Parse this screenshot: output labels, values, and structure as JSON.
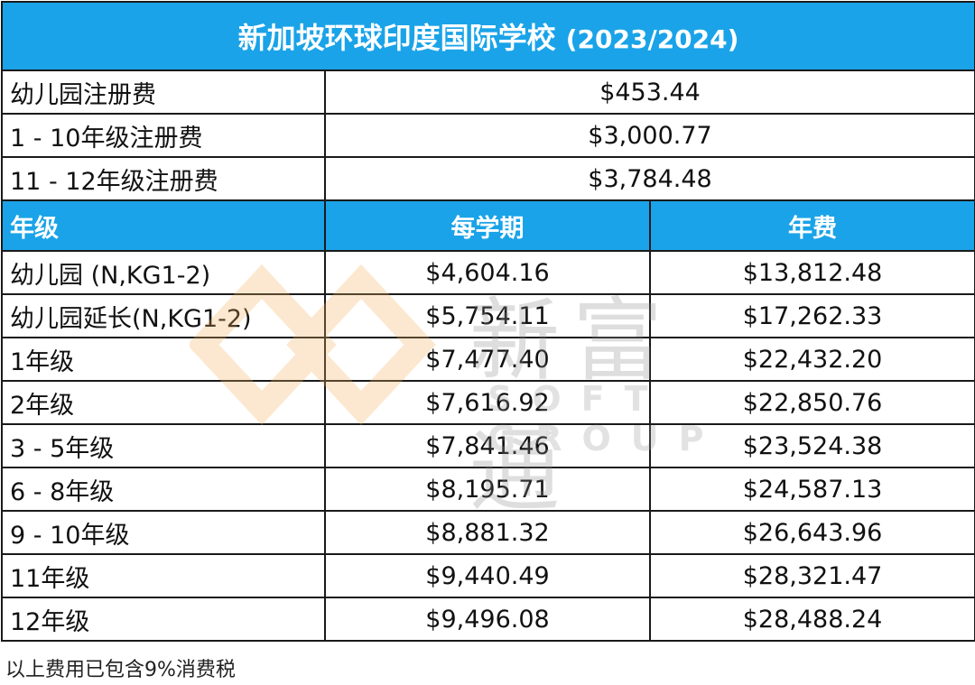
{
  "table": {
    "title": "新加坡环球印度国际学校",
    "title_year": "(2023/2024)",
    "registration": [
      {
        "label": "幼儿园注册费",
        "fee": "$453.44"
      },
      {
        "label": "1 - 10年级注册费",
        "fee": "$3,000.77"
      },
      {
        "label": "11 - 12年级注册费",
        "fee": "$3,784.48"
      }
    ],
    "headers": {
      "grade": "年级",
      "per_term": "每学期",
      "annual": "年费"
    },
    "rows": [
      {
        "grade": "幼儿园 (N,KG1-2)",
        "per_term": "$4,604.16",
        "annual": "$13,812.48"
      },
      {
        "grade": "幼儿园延长(N,KG1-2)",
        "per_term": "$5,754.11",
        "annual": "$17,262.33"
      },
      {
        "grade": "1年级",
        "per_term": "$7,477.40",
        "annual": "$22,432.20"
      },
      {
        "grade": "2年级",
        "per_term": "$7,616.92",
        "annual": "$22,850.76"
      },
      {
        "grade": "3 - 5年级",
        "per_term": "$7,841.46",
        "annual": "$23,524.38"
      },
      {
        "grade": "6 - 8年级",
        "per_term": "$8,195.71",
        "annual": "$24,587.13"
      },
      {
        "grade": "9 - 10年级",
        "per_term": "$8,881.32",
        "annual": "$26,643.96"
      },
      {
        "grade": "11年级",
        "per_term": "$9,440.49",
        "annual": "$28,321.47"
      },
      {
        "grade": "12年级",
        "per_term": "$9,496.08",
        "annual": "$28,488.24"
      }
    ]
  },
  "note": "以上费用已包含9%消费税",
  "watermark": {
    "text_cn": "新富通",
    "text_en": "SOFT GROUP"
  },
  "colors": {
    "header_blue": "#1aa3e8",
    "border": "#1a1a1a",
    "watermark_orange": "#f5b05a"
  }
}
